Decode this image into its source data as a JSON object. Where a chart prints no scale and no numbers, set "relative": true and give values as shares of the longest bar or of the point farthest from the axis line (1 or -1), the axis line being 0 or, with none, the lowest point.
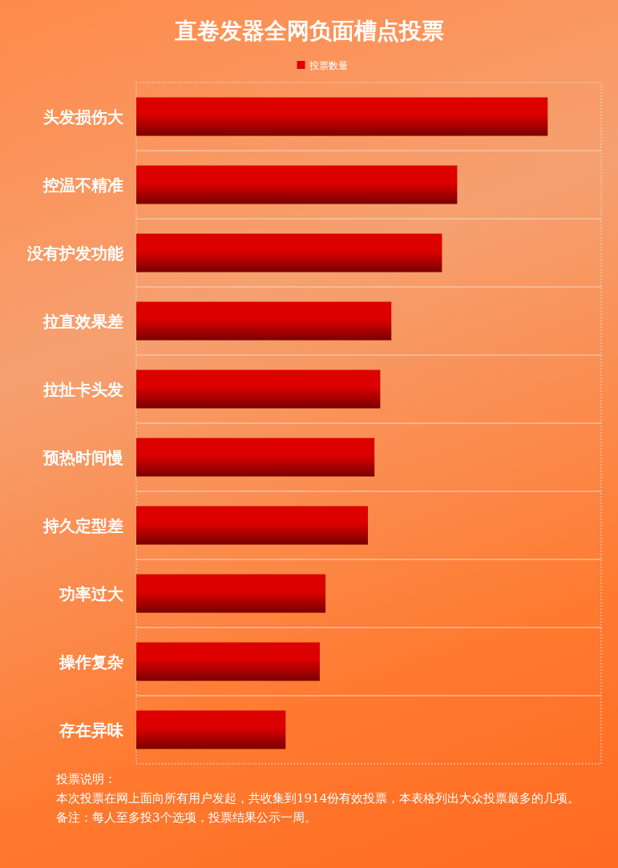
{
  "chart_data": {
    "type": "bar",
    "orientation": "horizontal",
    "relative": true,
    "title": "直卷发器全网负面槽点投票",
    "categories": [
      "头发损伤大",
      "控温不精准",
      "没有护发功能",
      "拉直效果差",
      "拉扯卡头发",
      "预热时间慢",
      "持久定型差",
      "功率过大",
      "操作复杂",
      "存在异味"
    ],
    "series": [
      {
        "name": "投票数量",
        "color": "#dc0000",
        "values": [
          1,
          0.78,
          0.743,
          0.62,
          0.593,
          0.579,
          0.563,
          0.46,
          0.446,
          0.363
        ]
      }
    ],
    "legend": "top",
    "grid": "y",
    "annotations": [
      "投票说明：",
      "本次投票在网上面向所有用户发起，共收集到1914份有效投票，本表格列出大众投票最多的几项。",
      "备注：每人至多投3个选项，投票结果公示一周。"
    ]
  }
}
